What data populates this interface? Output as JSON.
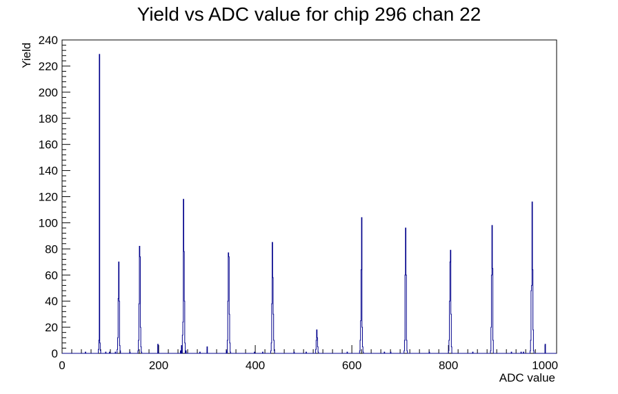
{
  "chart_data": {
    "type": "bar",
    "title": "Yield vs ADC value for chip 296 chan 22",
    "xlabel": "ADC value",
    "ylabel": "Yield",
    "xlim": [
      0,
      1024
    ],
    "ylim": [
      0,
      240
    ],
    "x_major_ticks": [
      0,
      200,
      400,
      600,
      800,
      1000
    ],
    "y_major_ticks": [
      0,
      20,
      40,
      60,
      80,
      100,
      120,
      140,
      160,
      180,
      200,
      220,
      240
    ],
    "grid": false,
    "legend": "none",
    "line_color": "#00008b",
    "bins": [
      {
        "x": 48,
        "y": 1
      },
      {
        "x": 75,
        "y": 3
      },
      {
        "x": 76,
        "y": 10
      },
      {
        "x": 77,
        "y": 229
      },
      {
        "x": 78,
        "y": 8
      },
      {
        "x": 79,
        "y": 2
      },
      {
        "x": 90,
        "y": 1
      },
      {
        "x": 98,
        "y": 1
      },
      {
        "x": 110,
        "y": 1
      },
      {
        "x": 114,
        "y": 3
      },
      {
        "x": 115,
        "y": 12
      },
      {
        "x": 116,
        "y": 42
      },
      {
        "x": 117,
        "y": 70
      },
      {
        "x": 118,
        "y": 40
      },
      {
        "x": 119,
        "y": 6
      },
      {
        "x": 120,
        "y": 2
      },
      {
        "x": 140,
        "y": 1
      },
      {
        "x": 157,
        "y": 2
      },
      {
        "x": 158,
        "y": 10
      },
      {
        "x": 159,
        "y": 38
      },
      {
        "x": 160,
        "y": 82
      },
      {
        "x": 161,
        "y": 74
      },
      {
        "x": 162,
        "y": 20
      },
      {
        "x": 163,
        "y": 5
      },
      {
        "x": 164,
        "y": 1
      },
      {
        "x": 198,
        "y": 7
      },
      {
        "x": 245,
        "y": 2
      },
      {
        "x": 247,
        "y": 6
      },
      {
        "x": 249,
        "y": 14
      },
      {
        "x": 250,
        "y": 24
      },
      {
        "x": 251,
        "y": 118
      },
      {
        "x": 252,
        "y": 78
      },
      {
        "x": 253,
        "y": 40
      },
      {
        "x": 254,
        "y": 8
      },
      {
        "x": 256,
        "y": 2
      },
      {
        "x": 285,
        "y": 1
      },
      {
        "x": 300,
        "y": 5
      },
      {
        "x": 340,
        "y": 2
      },
      {
        "x": 342,
        "y": 10
      },
      {
        "x": 343,
        "y": 40
      },
      {
        "x": 344,
        "y": 77
      },
      {
        "x": 345,
        "y": 74
      },
      {
        "x": 346,
        "y": 30
      },
      {
        "x": 347,
        "y": 8
      },
      {
        "x": 348,
        "y": 1
      },
      {
        "x": 398,
        "y": 1
      },
      {
        "x": 415,
        "y": 1
      },
      {
        "x": 432,
        "y": 2
      },
      {
        "x": 433,
        "y": 8
      },
      {
        "x": 434,
        "y": 38
      },
      {
        "x": 435,
        "y": 85
      },
      {
        "x": 436,
        "y": 58
      },
      {
        "x": 437,
        "y": 30
      },
      {
        "x": 438,
        "y": 10
      },
      {
        "x": 439,
        "y": 2
      },
      {
        "x": 480,
        "y": 1
      },
      {
        "x": 505,
        "y": 1
      },
      {
        "x": 525,
        "y": 3
      },
      {
        "x": 526,
        "y": 10
      },
      {
        "x": 527,
        "y": 18
      },
      {
        "x": 528,
        "y": 12
      },
      {
        "x": 529,
        "y": 5
      },
      {
        "x": 530,
        "y": 1
      },
      {
        "x": 590,
        "y": 1
      },
      {
        "x": 616,
        "y": 2
      },
      {
        "x": 617,
        "y": 10
      },
      {
        "x": 618,
        "y": 25
      },
      {
        "x": 619,
        "y": 64
      },
      {
        "x": 620,
        "y": 104
      },
      {
        "x": 621,
        "y": 20
      },
      {
        "x": 622,
        "y": 5
      },
      {
        "x": 623,
        "y": 1
      },
      {
        "x": 667,
        "y": 1
      },
      {
        "x": 680,
        "y": 1
      },
      {
        "x": 708,
        "y": 2
      },
      {
        "x": 709,
        "y": 10
      },
      {
        "x": 710,
        "y": 60
      },
      {
        "x": 711,
        "y": 96
      },
      {
        "x": 712,
        "y": 60
      },
      {
        "x": 713,
        "y": 10
      },
      {
        "x": 714,
        "y": 2
      },
      {
        "x": 760,
        "y": 1
      },
      {
        "x": 800,
        "y": 2
      },
      {
        "x": 801,
        "y": 10
      },
      {
        "x": 802,
        "y": 40
      },
      {
        "x": 803,
        "y": 70
      },
      {
        "x": 804,
        "y": 79
      },
      {
        "x": 805,
        "y": 30
      },
      {
        "x": 806,
        "y": 5
      },
      {
        "x": 850,
        "y": 1
      },
      {
        "x": 887,
        "y": 2
      },
      {
        "x": 888,
        "y": 20
      },
      {
        "x": 889,
        "y": 60
      },
      {
        "x": 890,
        "y": 98
      },
      {
        "x": 891,
        "y": 65
      },
      {
        "x": 892,
        "y": 10
      },
      {
        "x": 930,
        "y": 1
      },
      {
        "x": 950,
        "y": 1
      },
      {
        "x": 955,
        "y": 1
      },
      {
        "x": 969,
        "y": 2
      },
      {
        "x": 970,
        "y": 10
      },
      {
        "x": 971,
        "y": 48
      },
      {
        "x": 972,
        "y": 52
      },
      {
        "x": 973,
        "y": 116
      },
      {
        "x": 974,
        "y": 64
      },
      {
        "x": 975,
        "y": 18
      },
      {
        "x": 976,
        "y": 2
      },
      {
        "x": 1000,
        "y": 7
      }
    ]
  }
}
